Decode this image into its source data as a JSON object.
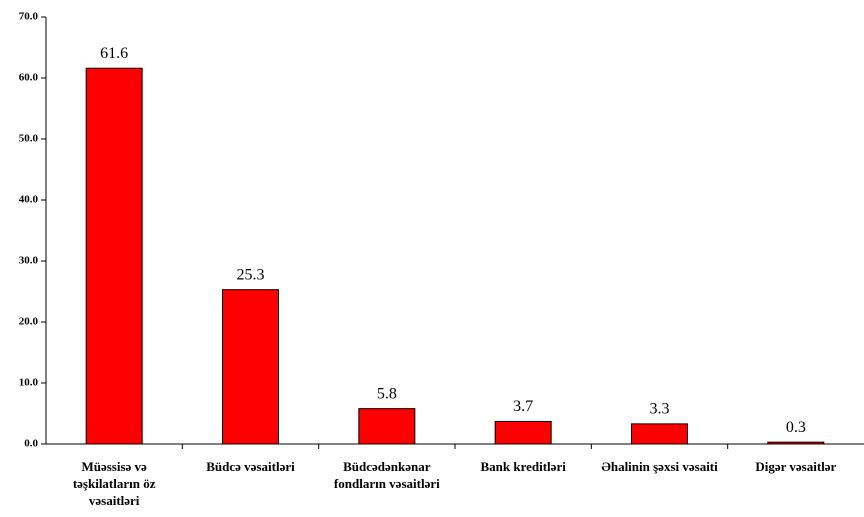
{
  "chart_data": {
    "type": "bar",
    "categories": [
      "Müəssisə və təşkilatların öz vəsaitləri",
      "Büdcə vəsaitləri",
      "Büdcədənkənar fondların vəsaitləri",
      "Bank kreditləri",
      "Əhalinin şəxsi vəsaiti",
      "Digər vəsaitlər"
    ],
    "values": [
      61.6,
      25.3,
      5.8,
      3.7,
      3.3,
      0.3
    ],
    "color": "#ff0000",
    "ylim": [
      0,
      70
    ],
    "yticks": [
      {
        "value": 0,
        "label": "0.0"
      },
      {
        "value": 10,
        "label": "10.0"
      },
      {
        "value": 20,
        "label": "20.0"
      },
      {
        "value": 30,
        "label": "30.0"
      },
      {
        "value": 40,
        "label": "40.0"
      },
      {
        "value": 50,
        "label": "50.0"
      },
      {
        "value": 60,
        "label": "60.0"
      },
      {
        "value": 70,
        "label": "70.0"
      }
    ],
    "grid": false
  }
}
